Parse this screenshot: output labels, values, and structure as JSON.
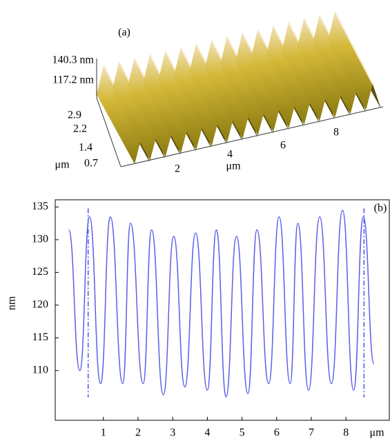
{
  "chart_data": [
    {
      "type": "surface",
      "title": "(a)",
      "zticks": [
        {
          "value": 140.3,
          "label": "140.3 nm"
        },
        {
          "value": 117.2,
          "label": "117.2 nm"
        }
      ],
      "yticks": [
        2.9,
        2.2,
        1.4,
        0.7
      ],
      "ylabel": "μm",
      "xticks": [
        2,
        4,
        6,
        8
      ],
      "xlabel": "μm"
    },
    {
      "type": "line",
      "title": "(b)",
      "ylabel": "nm",
      "xlabel": "μm",
      "xlim": [
        -0.39,
        9.25
      ],
      "ylim": [
        102.4,
        136.1
      ],
      "xticks": [
        1,
        2,
        3,
        4,
        5,
        6,
        7,
        8
      ],
      "yticks": [
        110,
        115,
        120,
        125,
        130,
        135
      ],
      "series": [
        {
          "color": "#5a5ee8",
          "x": [
            0.0,
            0.32,
            0.6,
            0.92,
            1.2,
            1.56,
            1.78,
            2.15,
            2.39,
            2.73,
            3.03,
            3.35,
            3.66,
            4.0,
            4.26,
            4.54,
            4.84,
            5.17,
            5.43,
            5.77,
            6.07,
            6.39,
            6.61,
            6.92,
            7.24,
            7.58,
            7.9,
            8.22,
            8.5,
            8.81
          ],
          "values": [
            131.5,
            110,
            133.5,
            108,
            133.5,
            108,
            132.5,
            108,
            131.5,
            106.3,
            130.5,
            107.5,
            131,
            107,
            131.5,
            106,
            130.5,
            106.5,
            131.5,
            108,
            133.5,
            108,
            132.5,
            107,
            133.5,
            108,
            134.5,
            107,
            133.5,
            111
          ]
        }
      ],
      "reference_lines": {
        "x": [
          0.56,
          8.52
        ],
        "y_span": [
          105.9,
          134.8
        ],
        "color": "#4a52e0"
      }
    }
  ]
}
